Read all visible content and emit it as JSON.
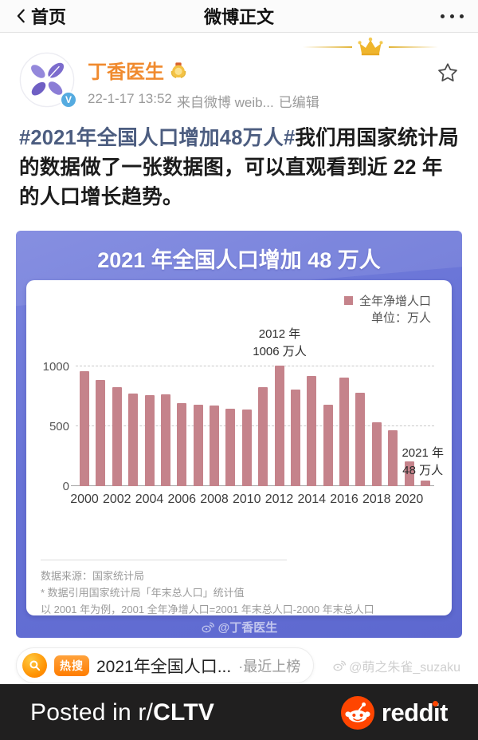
{
  "nav": {
    "back_label": "首页",
    "title": "微博正文"
  },
  "post": {
    "author": "丁香医生",
    "time": "22-1-17 13:52",
    "source": "来自微博 weib...",
    "edited": "已编辑",
    "hashtag": "#2021年全国人口增加48万人#",
    "body": "我们用国家统计局的数据做了一张数据图，可以直观看到近 22 年的人口增长趋势。"
  },
  "chart": {
    "title": "2021 年全国人口增加 48 万人",
    "legend_label": "全年净增人口",
    "unit_label": "单位：万人",
    "ann_2012": [
      "2012 年",
      "1006 万人"
    ],
    "ann_2021": [
      "2021 年",
      "48 万人"
    ],
    "footnotes": [
      "数据来源：国家统计局",
      "* 数据引用国家统计局「年末总人口」统计值",
      "以 2001 年为例，2001 全年净增人口=2001 年末总人口-2000 年末总人口"
    ],
    "watermark": "@丁香医生"
  },
  "chart_data": {
    "type": "bar",
    "title": "2021 年全国人口增加 48 万人",
    "categories": [
      2000,
      2001,
      2002,
      2003,
      2004,
      2005,
      2006,
      2007,
      2008,
      2009,
      2010,
      2011,
      2012,
      2013,
      2014,
      2015,
      2016,
      2017,
      2018,
      2019,
      2020,
      2021
    ],
    "values": [
      957,
      884,
      826,
      774,
      761,
      768,
      692,
      681,
      673,
      648,
      641,
      825,
      1006,
      804,
      920,
      680,
      906,
      779,
      530,
      467,
      204,
      48
    ],
    "xlabel": "",
    "ylabel": "万人",
    "yticks": [
      0,
      500,
      1000
    ],
    "ylim": [
      0,
      1100
    ],
    "xtick_labels_shown": [
      "2000",
      "2002",
      "2004",
      "2006",
      "2008",
      "2010",
      "2012",
      "2014",
      "2016",
      "2018",
      "2020"
    ],
    "legend": [
      "全年净增人口"
    ],
    "legend_position": "top-right",
    "grid": "horizontal dashed at 500 and 1000",
    "bar_color": "#c5838b",
    "annotations": [
      {
        "x": 2012,
        "text": "2012 年 1006 万人"
      },
      {
        "x": 2021,
        "text": "2021 年 48 万人"
      }
    ]
  },
  "hotsearch": {
    "badge": "热搜",
    "title": "2021年全国人口...",
    "suffix": "·最近上榜"
  },
  "watermark": {
    "handle": "@萌之朱雀_suzaku"
  },
  "footer": {
    "posted_prefix": "Posted in r/",
    "subreddit": "CLTV",
    "brand": "reddit"
  },
  "colors": {
    "chart_bg": "#6772d6",
    "bar": "#c5838b",
    "author_orange": "#f08a2e",
    "hashtag_blue": "#4c5d80",
    "reddit_orange": "#ff4500"
  }
}
